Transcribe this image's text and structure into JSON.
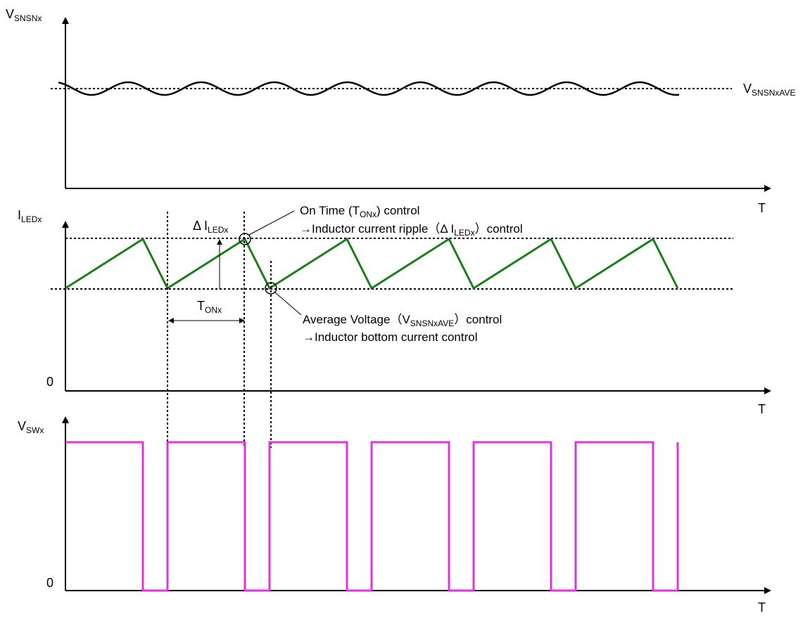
{
  "panels": {
    "vsns": {
      "y_label_main": "V",
      "y_label_sub": "SNSNx",
      "avg_label_main": "V",
      "avg_label_sub": "SNSNxAVE"
    },
    "iled": {
      "y_label_main": "I",
      "y_label_sub": "LEDx",
      "zero_label": "0",
      "x_label": "T",
      "delta_label_main": "Δ I",
      "delta_label_sub": "LEDx",
      "ton_label_main": "T",
      "ton_label_sub": "ONx"
    },
    "vsw": {
      "y_label_main": "V",
      "y_label_sub": "SWx",
      "zero_label": "0",
      "x_label": "T"
    },
    "top_x_label": "T"
  },
  "annotations": {
    "on_time": {
      "line1_pre": "On Time (T",
      "line1_sub": "ONx",
      "line1_post": ") control",
      "line2_pre": "→Inductor current ripple（Δ I",
      "line2_sub": "LEDx",
      "line2_post": "）control"
    },
    "avg_voltage": {
      "line1_pre": "Average Voltage（V",
      "line1_sub": "SNSNxAVE",
      "line1_post": "）control",
      "line2": "→Inductor bottom current control"
    }
  },
  "colors": {
    "axis": "#000000",
    "inductor_current": "#1a7f1a",
    "switch_voltage": "#e033e0"
  },
  "waveforms": {
    "inductor_current_cycles": 6,
    "switch_voltage_cycles": 6,
    "sense_voltage_ripple_cycles": 8
  }
}
